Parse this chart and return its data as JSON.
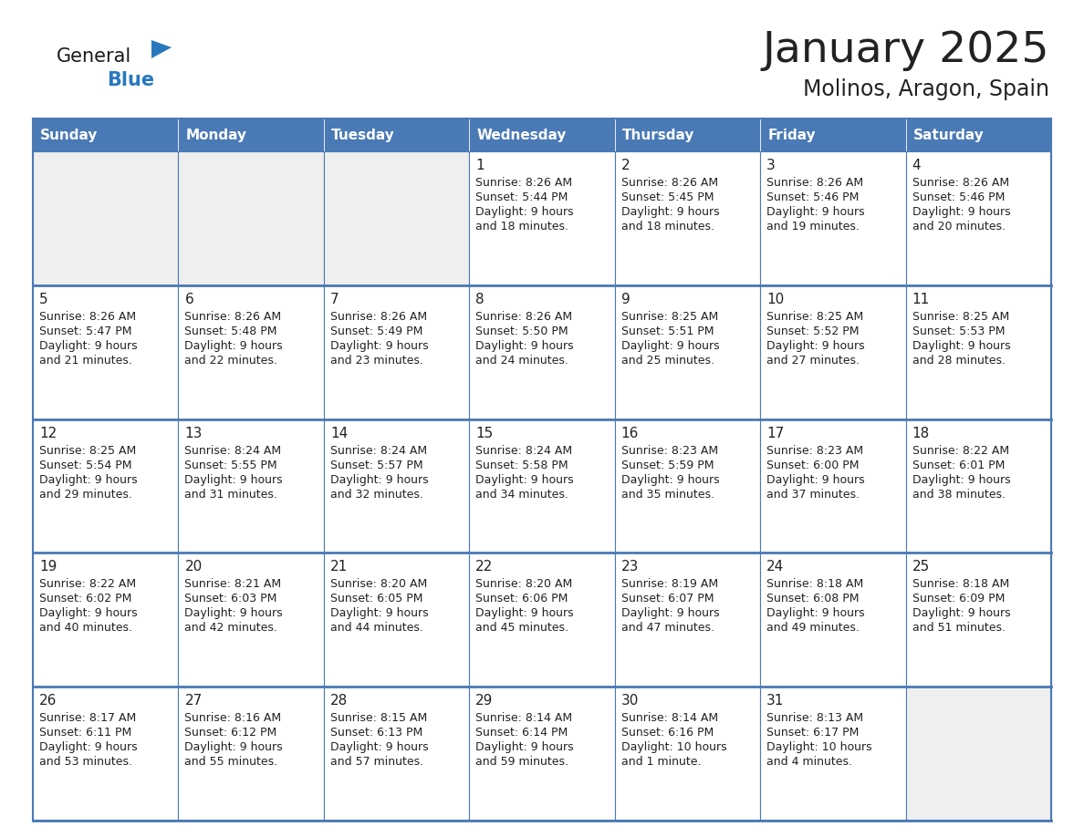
{
  "title": "January 2025",
  "subtitle": "Molinos, Aragon, Spain",
  "days_of_week": [
    "Sunday",
    "Monday",
    "Tuesday",
    "Wednesday",
    "Thursday",
    "Friday",
    "Saturday"
  ],
  "header_bg_color": "#4a7ab5",
  "header_text_color": "#FFFFFF",
  "cell_bg_color": "#FFFFFF",
  "alt_cell_bg_color": "#EFEFEF",
  "grid_color": "#4a7ab5",
  "text_color": "#222222",
  "title_color": "#222222",
  "logo_black": "#1a1a1a",
  "logo_blue": "#2878be",
  "calendar_data": [
    [
      {
        "day": "",
        "sunrise": "",
        "sunset": "",
        "daylight": ""
      },
      {
        "day": "",
        "sunrise": "",
        "sunset": "",
        "daylight": ""
      },
      {
        "day": "",
        "sunrise": "",
        "sunset": "",
        "daylight": ""
      },
      {
        "day": "1",
        "sunrise": "8:26 AM",
        "sunset": "5:44 PM",
        "daylight": "9 hours and 18 minutes."
      },
      {
        "day": "2",
        "sunrise": "8:26 AM",
        "sunset": "5:45 PM",
        "daylight": "9 hours and 18 minutes."
      },
      {
        "day": "3",
        "sunrise": "8:26 AM",
        "sunset": "5:46 PM",
        "daylight": "9 hours and 19 minutes."
      },
      {
        "day": "4",
        "sunrise": "8:26 AM",
        "sunset": "5:46 PM",
        "daylight": "9 hours and 20 minutes."
      }
    ],
    [
      {
        "day": "5",
        "sunrise": "8:26 AM",
        "sunset": "5:47 PM",
        "daylight": "9 hours and 21 minutes."
      },
      {
        "day": "6",
        "sunrise": "8:26 AM",
        "sunset": "5:48 PM",
        "daylight": "9 hours and 22 minutes."
      },
      {
        "day": "7",
        "sunrise": "8:26 AM",
        "sunset": "5:49 PM",
        "daylight": "9 hours and 23 minutes."
      },
      {
        "day": "8",
        "sunrise": "8:26 AM",
        "sunset": "5:50 PM",
        "daylight": "9 hours and 24 minutes."
      },
      {
        "day": "9",
        "sunrise": "8:25 AM",
        "sunset": "5:51 PM",
        "daylight": "9 hours and 25 minutes."
      },
      {
        "day": "10",
        "sunrise": "8:25 AM",
        "sunset": "5:52 PM",
        "daylight": "9 hours and 27 minutes."
      },
      {
        "day": "11",
        "sunrise": "8:25 AM",
        "sunset": "5:53 PM",
        "daylight": "9 hours and 28 minutes."
      }
    ],
    [
      {
        "day": "12",
        "sunrise": "8:25 AM",
        "sunset": "5:54 PM",
        "daylight": "9 hours and 29 minutes."
      },
      {
        "day": "13",
        "sunrise": "8:24 AM",
        "sunset": "5:55 PM",
        "daylight": "9 hours and 31 minutes."
      },
      {
        "day": "14",
        "sunrise": "8:24 AM",
        "sunset": "5:57 PM",
        "daylight": "9 hours and 32 minutes."
      },
      {
        "day": "15",
        "sunrise": "8:24 AM",
        "sunset": "5:58 PM",
        "daylight": "9 hours and 34 minutes."
      },
      {
        "day": "16",
        "sunrise": "8:23 AM",
        "sunset": "5:59 PM",
        "daylight": "9 hours and 35 minutes."
      },
      {
        "day": "17",
        "sunrise": "8:23 AM",
        "sunset": "6:00 PM",
        "daylight": "9 hours and 37 minutes."
      },
      {
        "day": "18",
        "sunrise": "8:22 AM",
        "sunset": "6:01 PM",
        "daylight": "9 hours and 38 minutes."
      }
    ],
    [
      {
        "day": "19",
        "sunrise": "8:22 AM",
        "sunset": "6:02 PM",
        "daylight": "9 hours and 40 minutes."
      },
      {
        "day": "20",
        "sunrise": "8:21 AM",
        "sunset": "6:03 PM",
        "daylight": "9 hours and 42 minutes."
      },
      {
        "day": "21",
        "sunrise": "8:20 AM",
        "sunset": "6:05 PM",
        "daylight": "9 hours and 44 minutes."
      },
      {
        "day": "22",
        "sunrise": "8:20 AM",
        "sunset": "6:06 PM",
        "daylight": "9 hours and 45 minutes."
      },
      {
        "day": "23",
        "sunrise": "8:19 AM",
        "sunset": "6:07 PM",
        "daylight": "9 hours and 47 minutes."
      },
      {
        "day": "24",
        "sunrise": "8:18 AM",
        "sunset": "6:08 PM",
        "daylight": "9 hours and 49 minutes."
      },
      {
        "day": "25",
        "sunrise": "8:18 AM",
        "sunset": "6:09 PM",
        "daylight": "9 hours and 51 minutes."
      }
    ],
    [
      {
        "day": "26",
        "sunrise": "8:17 AM",
        "sunset": "6:11 PM",
        "daylight": "9 hours and 53 minutes."
      },
      {
        "day": "27",
        "sunrise": "8:16 AM",
        "sunset": "6:12 PM",
        "daylight": "9 hours and 55 minutes."
      },
      {
        "day": "28",
        "sunrise": "8:15 AM",
        "sunset": "6:13 PM",
        "daylight": "9 hours and 57 minutes."
      },
      {
        "day": "29",
        "sunrise": "8:14 AM",
        "sunset": "6:14 PM",
        "daylight": "9 hours and 59 minutes."
      },
      {
        "day": "30",
        "sunrise": "8:14 AM",
        "sunset": "6:16 PM",
        "daylight": "10 hours and 1 minute."
      },
      {
        "day": "31",
        "sunrise": "8:13 AM",
        "sunset": "6:17 PM",
        "daylight": "10 hours and 4 minutes."
      },
      {
        "day": "",
        "sunrise": "",
        "sunset": "",
        "daylight": ""
      }
    ]
  ],
  "figsize": [
    11.88,
    9.18
  ],
  "dpi": 100,
  "logo_fontsize": 15,
  "title_fontsize": 34,
  "subtitle_fontsize": 17,
  "header_fontsize": 11,
  "day_num_fontsize": 11,
  "cell_text_fontsize": 9
}
